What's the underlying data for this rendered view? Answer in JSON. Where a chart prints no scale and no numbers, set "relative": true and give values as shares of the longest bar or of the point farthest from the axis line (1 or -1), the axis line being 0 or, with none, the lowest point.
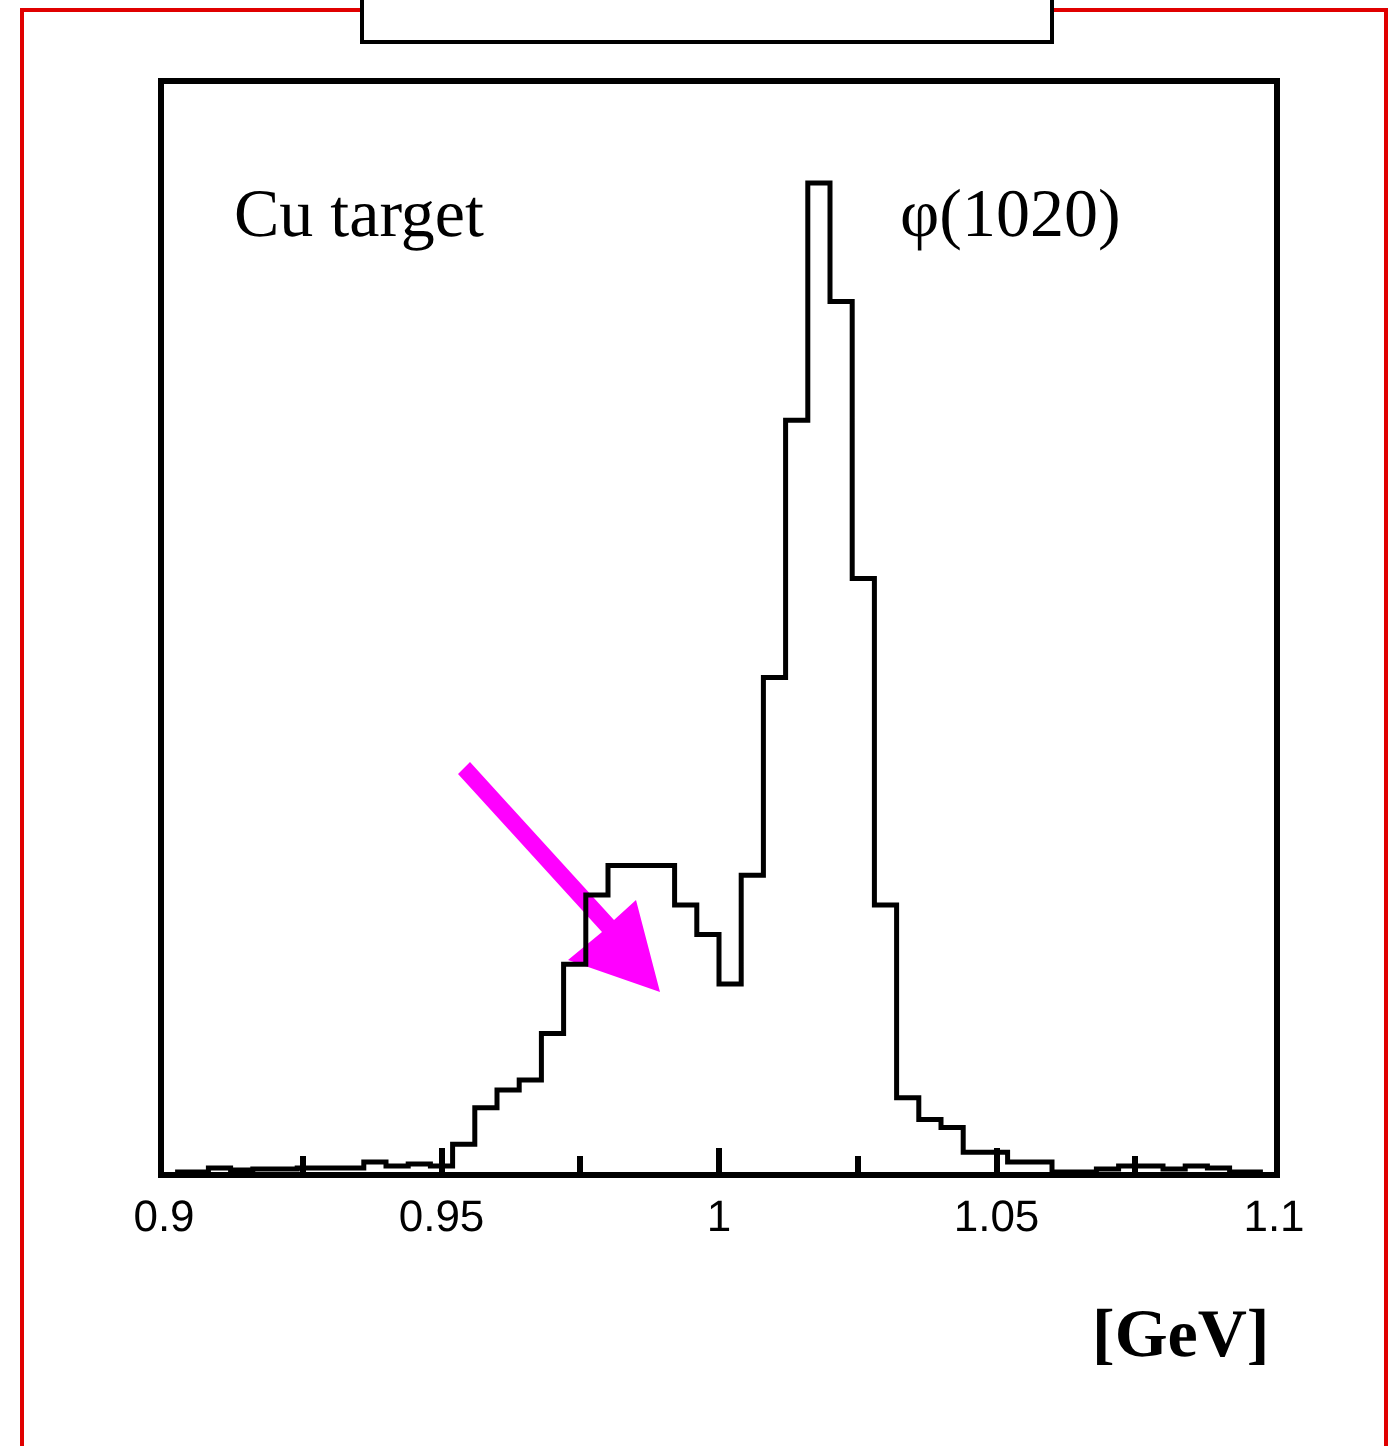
{
  "chart_data": {
    "type": "step",
    "relative": true,
    "xlabel": "[GeV]",
    "color": "#000000",
    "x": [
      0.902,
      0.906,
      0.91,
      0.914,
      0.918,
      0.922,
      0.926,
      0.93,
      0.934,
      0.938,
      0.942,
      0.946,
      0.95,
      0.954,
      0.958,
      0.962,
      0.966,
      0.97,
      0.974,
      0.978,
      0.982,
      0.986,
      0.99,
      0.994,
      0.998,
      1.002,
      1.006,
      1.01,
      1.014,
      1.018,
      1.022,
      1.026,
      1.03,
      1.034,
      1.038,
      1.042,
      1.046,
      1.05,
      1.054,
      1.058,
      1.062,
      1.066,
      1.07,
      1.074,
      1.078,
      1.082,
      1.086,
      1.09,
      1.094,
      1.098
    ],
    "values": [
      0,
      0,
      0.004,
      0.002,
      0.003,
      0.003,
      0.004,
      0.004,
      0.004,
      0.01,
      0.006,
      0.008,
      0.006,
      0.028,
      0.065,
      0.083,
      0.093,
      0.14,
      0.21,
      0.28,
      0.31,
      0.31,
      0.31,
      0.27,
      0.24,
      0.19,
      0.3,
      0.5,
      0.76,
      1,
      0.88,
      0.6,
      0.27,
      0.075,
      0.053,
      0.045,
      0.02,
      0.02,
      0.01,
      0.01,
      0,
      0,
      0.003,
      0.006,
      0.006,
      0.003,
      0.006,
      0.004,
      0,
      0
    ],
    "xlim": [
      0.9,
      1.1
    ],
    "xticks": [
      0.9,
      0.95,
      1,
      1.05,
      1.1
    ],
    "grid": false,
    "annotations": [
      "Cu target",
      "φ(1020)"
    ]
  }
}
